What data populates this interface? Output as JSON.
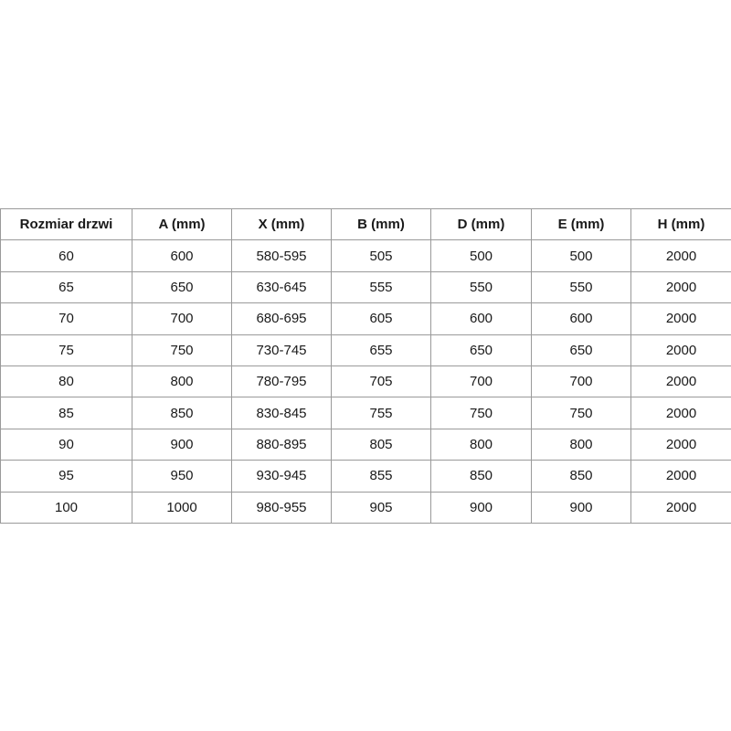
{
  "table": {
    "headers": [
      "Rozmiar drzwi",
      "A (mm)",
      "X (mm)",
      "B (mm)",
      "D (mm)",
      "E (mm)",
      "H (mm)"
    ],
    "rows": [
      [
        "60",
        "600",
        "580-595",
        "505",
        "500",
        "500",
        "2000"
      ],
      [
        "65",
        "650",
        "630-645",
        "555",
        "550",
        "550",
        "2000"
      ],
      [
        "70",
        "700",
        "680-695",
        "605",
        "600",
        "600",
        "2000"
      ],
      [
        "75",
        "750",
        "730-745",
        "655",
        "650",
        "650",
        "2000"
      ],
      [
        "80",
        "800",
        "780-795",
        "705",
        "700",
        "700",
        "2000"
      ],
      [
        "85",
        "850",
        "830-845",
        "755",
        "750",
        "750",
        "2000"
      ],
      [
        "90",
        "900",
        "880-895",
        "805",
        "800",
        "800",
        "2000"
      ],
      [
        "95",
        "950",
        "930-945",
        "855",
        "850",
        "850",
        "2000"
      ],
      [
        "100",
        "1000",
        "980-955",
        "905",
        "900",
        "900",
        "2000"
      ]
    ]
  }
}
